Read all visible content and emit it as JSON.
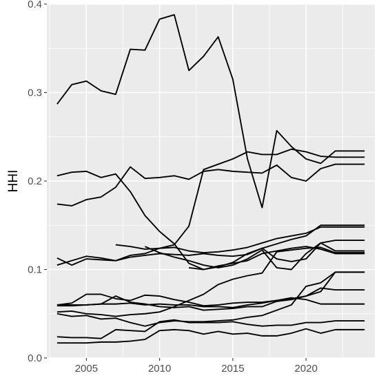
{
  "chart_data": {
    "type": "line",
    "title": "",
    "xlabel": "",
    "ylabel": "HHI",
    "xlim": [
      2002.3,
      2024.7
    ],
    "ylim": [
      0.0,
      0.4
    ],
    "x_ticks": [
      2005,
      2010,
      2015,
      2020
    ],
    "x_tick_labels": [
      "2005",
      "2010",
      "2015",
      "2020"
    ],
    "y_ticks": [
      0.0,
      0.1,
      0.2,
      0.3,
      0.4
    ],
    "y_tick_labels": [
      "0.0",
      "0.1",
      "0.2",
      "0.3",
      "0.4"
    ],
    "x_minor_ticks": [
      2002.5,
      2007.5,
      2012.5,
      2017.5,
      2022.5
    ],
    "y_minor_ticks": [
      0.05,
      0.15,
      0.25,
      0.35
    ],
    "grid": true,
    "legend": "none",
    "line_color": "#000000",
    "panel_color": "#ebebeb",
    "x": [
      2003,
      2004,
      2005,
      2006,
      2007,
      2008,
      2009,
      2010,
      2011,
      2012,
      2013,
      2014,
      2015,
      2016,
      2017,
      2018,
      2019,
      2020,
      2021,
      2022,
      2023,
      2024
    ],
    "series": [
      {
        "values": [
          0.287,
          0.309,
          0.313,
          0.302,
          0.298,
          0.349,
          0.348,
          0.383,
          0.388,
          0.325,
          0.341,
          0.363,
          0.315,
          0.225,
          0.17,
          0.257,
          0.239,
          0.225,
          0.22,
          0.234,
          0.234,
          0.234
        ]
      },
      {
        "values": [
          0.206,
          0.21,
          0.211,
          0.204,
          0.208,
          0.188,
          0.161,
          0.143,
          0.129,
          0.107,
          0.1,
          0.103,
          0.108,
          0.118,
          0.124,
          0.112,
          0.109,
          0.112,
          0.13,
          0.121,
          0.121,
          0.121
        ]
      },
      {
        "values": [
          0.174,
          0.172,
          0.179,
          0.182,
          0.193,
          0.216,
          0.203,
          0.204,
          0.206,
          0.202,
          0.211,
          0.213,
          0.211,
          0.21,
          0.209,
          0.218,
          0.204,
          0.2,
          0.214,
          0.219,
          0.219,
          0.219
        ]
      },
      {
        "values": [
          0.113,
          0.105,
          0.112,
          0.111,
          0.11,
          0.116,
          0.118,
          0.124,
          0.128,
          0.149,
          0.213,
          0.219,
          0.225,
          0.233,
          0.23,
          0.23,
          0.236,
          0.233,
          0.228,
          0.227,
          0.227,
          0.227
        ]
      },
      {
        "values": [
          0.105,
          0.11,
          0.115,
          0.113,
          0.11,
          0.114,
          0.116,
          0.118,
          0.117,
          0.116,
          0.118,
          0.116,
          0.115,
          0.117,
          0.124,
          0.129,
          0.134,
          0.138,
          0.15,
          0.15,
          0.15,
          0.15
        ]
      },
      {
        "values": [
          null,
          null,
          null,
          null,
          0.128,
          0.126,
          0.123,
          0.124,
          0.125,
          0.121,
          0.119,
          0.12,
          0.122,
          0.125,
          0.13,
          0.135,
          0.138,
          0.141,
          0.148,
          0.148,
          0.148,
          0.148
        ]
      },
      {
        "values": [
          null,
          null,
          null,
          null,
          null,
          null,
          0.126,
          0.119,
          0.114,
          0.11,
          0.105,
          0.102,
          0.105,
          0.112,
          0.122,
          0.102,
          0.1,
          0.118,
          0.13,
          0.133,
          0.133,
          0.133
        ]
      },
      {
        "values": [
          null,
          null,
          null,
          null,
          null,
          null,
          null,
          null,
          null,
          0.102,
          0.1,
          0.104,
          0.107,
          0.11,
          0.118,
          0.121,
          0.124,
          0.126,
          0.123,
          0.118,
          0.118,
          0.118
        ]
      },
      {
        "values": [
          0.06,
          0.062,
          0.072,
          0.072,
          0.067,
          0.065,
          0.071,
          0.07,
          0.066,
          0.063,
          0.059,
          0.06,
          0.062,
          0.063,
          0.063,
          0.065,
          0.068,
          0.066,
          0.061,
          0.061,
          0.061,
          0.061
        ]
      },
      {
        "values": [
          0.06,
          0.06,
          0.06,
          0.061,
          0.061,
          0.062,
          0.06,
          0.061,
          0.06,
          0.06,
          0.058,
          0.058,
          0.057,
          0.06,
          0.062,
          0.065,
          0.067,
          0.07,
          0.075,
          0.097,
          0.097,
          0.097
        ]
      },
      {
        "values": [
          0.059,
          0.059,
          0.06,
          0.061,
          0.07,
          0.063,
          0.061,
          0.058,
          0.057,
          0.058,
          0.054,
          0.055,
          0.056,
          0.058,
          0.058,
          0.064,
          0.066,
          0.07,
          0.079,
          0.077,
          0.077,
          0.077
        ]
      },
      {
        "values": [
          0.052,
          0.053,
          0.05,
          0.049,
          0.047,
          0.049,
          0.05,
          0.052,
          0.058,
          0.065,
          0.072,
          0.083,
          0.089,
          0.093,
          0.096,
          0.12,
          0.122,
          0.124,
          0.125,
          0.119,
          0.119,
          0.119
        ]
      },
      {
        "values": [
          0.05,
          0.047,
          0.048,
          0.044,
          0.045,
          0.04,
          0.036,
          0.04,
          0.042,
          0.041,
          0.041,
          0.042,
          0.043,
          0.046,
          0.048,
          0.054,
          0.06,
          0.081,
          0.085,
          0.097,
          0.097,
          0.097
        ]
      },
      {
        "values": [
          0.024,
          0.023,
          0.023,
          0.022,
          0.032,
          0.031,
          0.03,
          0.041,
          0.043,
          0.04,
          0.04,
          0.04,
          0.041,
          0.038,
          0.036,
          0.037,
          0.037,
          0.04,
          0.04,
          0.042,
          0.042,
          0.042
        ]
      },
      {
        "values": [
          0.017,
          0.017,
          0.017,
          0.018,
          0.018,
          0.019,
          0.021,
          0.031,
          0.032,
          0.031,
          0.027,
          0.03,
          0.027,
          0.028,
          0.025,
          0.025,
          0.028,
          0.033,
          0.028,
          0.032,
          0.032,
          0.032
        ]
      }
    ]
  }
}
